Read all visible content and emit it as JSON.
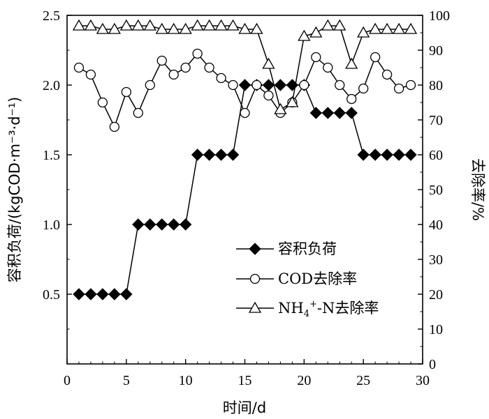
{
  "chart_data": {
    "type": "line",
    "xlabel": "时间/d",
    "ylabel_left": "容积负荷/(kgCOD·m⁻³·d⁻¹)",
    "ylabel_right": "去除率/%",
    "xlim": [
      0,
      30
    ],
    "ylim_left": [
      0,
      2.5
    ],
    "ylim_right": [
      0,
      100
    ],
    "x_ticks": [
      "0",
      "5",
      "10",
      "15",
      "20",
      "25",
      "30"
    ],
    "y_left_ticks": [
      "0.5",
      "1.0",
      "1.5",
      "2.0",
      "2.5"
    ],
    "y_right_ticks": [
      "0",
      "10",
      "20",
      "30",
      "40",
      "50",
      "60",
      "70",
      "80",
      "90",
      "100"
    ],
    "legend_position": "center-right",
    "grid": false,
    "series": [
      {
        "name": "容积负荷",
        "axis": "left",
        "marker": "filled-diamond",
        "x": [
          1,
          2,
          3,
          4,
          5,
          6,
          7,
          8,
          9,
          10,
          11,
          12,
          13,
          14,
          15,
          16,
          17,
          18,
          19,
          20,
          21,
          22,
          23,
          24,
          25,
          26,
          27,
          28,
          29
        ],
        "values": [
          0.5,
          0.5,
          0.5,
          0.5,
          0.5,
          1.0,
          1.0,
          1.0,
          1.0,
          1.0,
          1.5,
          1.5,
          1.5,
          1.5,
          2.0,
          2.0,
          2.0,
          2.0,
          2.0,
          2.0,
          1.8,
          1.8,
          1.8,
          1.8,
          1.5,
          1.5,
          1.5,
          1.5,
          1.5
        ]
      },
      {
        "name": "COD去除率",
        "axis": "right",
        "marker": "open-circle",
        "x": [
          1,
          2,
          3,
          4,
          5,
          6,
          7,
          8,
          9,
          10,
          11,
          12,
          13,
          14,
          15,
          16,
          17,
          18,
          19,
          20,
          21,
          22,
          23,
          24,
          25,
          26,
          27,
          28,
          29
        ],
        "values": [
          85,
          83,
          75,
          68,
          78,
          72,
          80,
          87,
          83,
          85,
          89,
          85,
          82,
          80,
          72,
          80,
          77,
          72,
          75,
          80,
          88,
          85,
          80,
          76,
          79,
          88,
          83,
          79,
          80
        ]
      },
      {
        "name": "NH4+-N去除率",
        "axis": "right",
        "marker": "open-triangle",
        "x": [
          1,
          2,
          3,
          4,
          5,
          6,
          7,
          8,
          9,
          10,
          11,
          12,
          13,
          14,
          15,
          16,
          17,
          18,
          19,
          20,
          21,
          22,
          23,
          24,
          25,
          26,
          27,
          28,
          29
        ],
        "values": [
          97,
          97,
          96,
          96,
          97,
          97,
          97,
          96,
          96,
          96,
          97,
          97,
          97,
          97,
          96,
          96,
          86,
          73,
          75,
          94,
          95,
          97,
          97,
          86,
          95,
          96,
          96,
          96,
          96
        ]
      }
    ]
  }
}
